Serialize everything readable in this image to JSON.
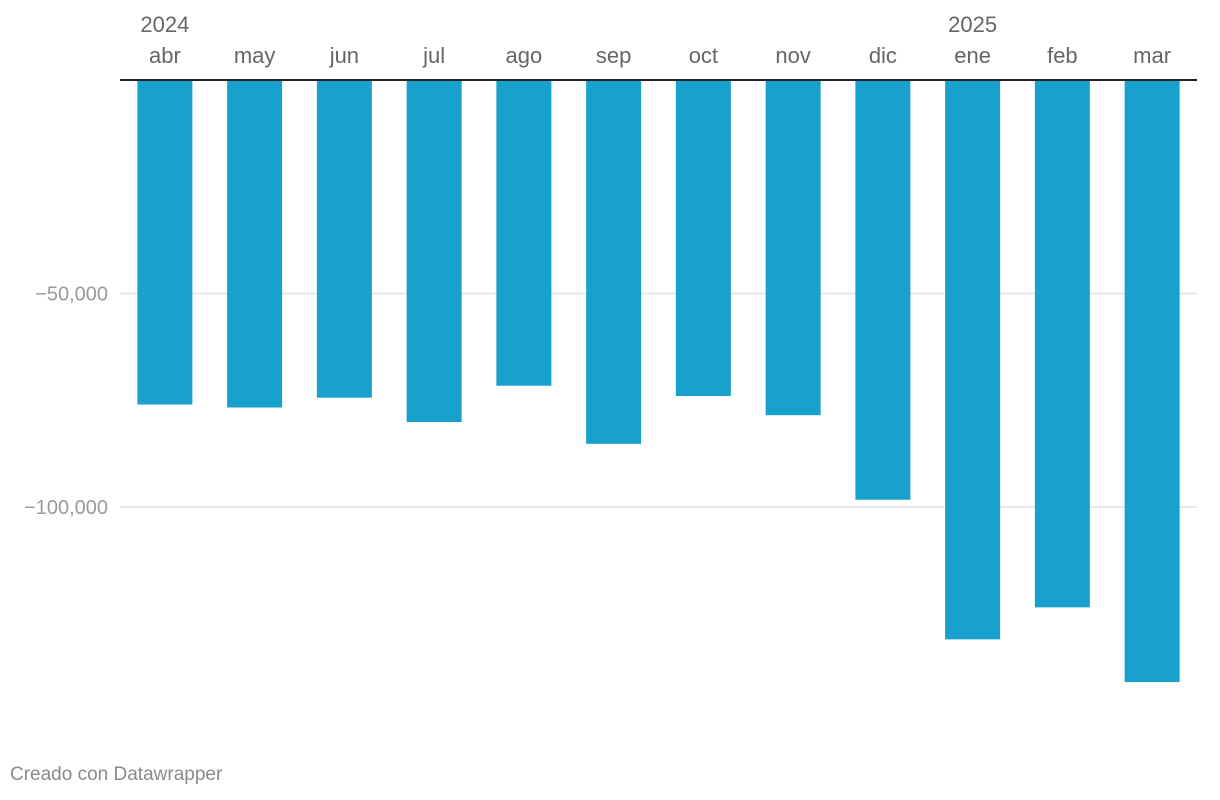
{
  "chart_data": {
    "type": "bar",
    "categories": [
      "abr",
      "may",
      "jun",
      "jul",
      "ago",
      "sep",
      "oct",
      "nov",
      "dic",
      "ene",
      "feb",
      "mar"
    ],
    "year_labels": [
      {
        "category": "abr",
        "year": "2024"
      },
      {
        "category": "ene",
        "year": "2025"
      }
    ],
    "values": [
      -76000,
      -76700,
      -74400,
      -80100,
      -71600,
      -85200,
      -74000,
      -78500,
      -98300,
      -131000,
      -123500,
      -141000
    ],
    "ylim": [
      -150000,
      0
    ],
    "yticks": [
      -50000,
      -100000
    ],
    "ytick_labels": [
      "−50,000",
      "−100,000"
    ],
    "bar_color": "#18a1cd",
    "grid": true,
    "x_axis_position": "top",
    "title": "",
    "xlabel": "",
    "ylabel": ""
  },
  "footer": {
    "credit": "Creado con Datawrapper"
  }
}
